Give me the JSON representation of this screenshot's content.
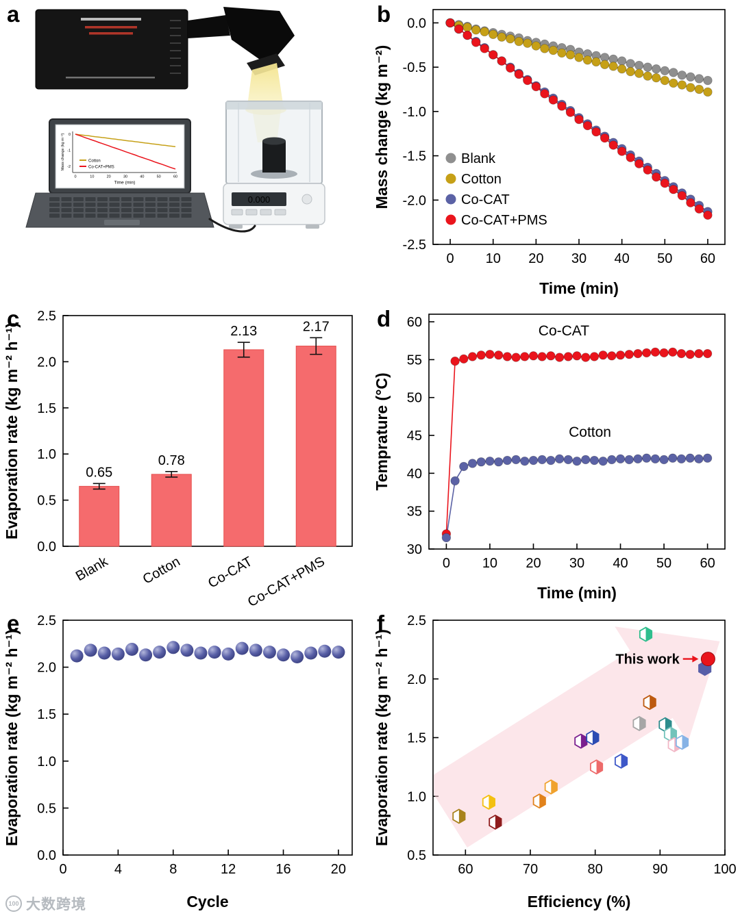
{
  "panel_labels": {
    "a": "a",
    "b": "b",
    "c": "c",
    "d": "d",
    "e": "e",
    "f": "f"
  },
  "watermark": {
    "icon_text": "100",
    "text": "大数跨境"
  },
  "panel_a": {
    "balance_display": "0.000",
    "inset_legend": [
      "Cotton",
      "Co-CAT+PMS"
    ],
    "inset_ylabel": "Mass change (kg m⁻²)",
    "inset_xlabel": "Time (min)"
  },
  "chart_data": [
    {
      "id": "b",
      "type": "line",
      "xlabel": "Time (min)",
      "ylabel": "Mass change (kg m⁻²)",
      "xlim": [
        -4,
        64
      ],
      "ylim": [
        -2.5,
        0.15
      ],
      "xticks": [
        0,
        10,
        20,
        30,
        40,
        50,
        60
      ],
      "yticks": [
        0,
        -0.5,
        -1,
        -1.5,
        -2,
        -2.5
      ],
      "xdec": 0,
      "ydec": 1,
      "x": [
        0,
        2,
        4,
        6,
        8,
        10,
        12,
        14,
        16,
        18,
        20,
        22,
        24,
        26,
        28,
        30,
        32,
        34,
        36,
        38,
        40,
        42,
        44,
        46,
        48,
        50,
        52,
        54,
        56,
        58,
        60
      ],
      "series": [
        {
          "name": "Blank",
          "color": "#8f8f8f",
          "values": [
            0,
            -0.02,
            -0.04,
            -0.07,
            -0.09,
            -0.11,
            -0.13,
            -0.15,
            -0.17,
            -0.2,
            -0.22,
            -0.24,
            -0.26,
            -0.28,
            -0.3,
            -0.33,
            -0.35,
            -0.37,
            -0.39,
            -0.41,
            -0.43,
            -0.46,
            -0.48,
            -0.5,
            -0.52,
            -0.54,
            -0.56,
            -0.59,
            -0.61,
            -0.63,
            -0.65
          ]
        },
        {
          "name": "Cotton",
          "color": "#c6a017",
          "values": [
            0,
            -0.03,
            -0.05,
            -0.08,
            -0.1,
            -0.13,
            -0.16,
            -0.18,
            -0.21,
            -0.23,
            -0.26,
            -0.29,
            -0.31,
            -0.34,
            -0.36,
            -0.39,
            -0.42,
            -0.44,
            -0.47,
            -0.49,
            -0.52,
            -0.55,
            -0.57,
            -0.6,
            -0.62,
            -0.65,
            -0.68,
            -0.7,
            -0.73,
            -0.75,
            -0.78
          ]
        },
        {
          "name": "Co-CAT",
          "color": "#5b62a5",
          "values": [
            0,
            -0.07,
            -0.14,
            -0.21,
            -0.28,
            -0.36,
            -0.43,
            -0.5,
            -0.57,
            -0.64,
            -0.71,
            -0.78,
            -0.85,
            -0.92,
            -0.99,
            -1.07,
            -1.14,
            -1.21,
            -1.28,
            -1.35,
            -1.42,
            -1.49,
            -1.56,
            -1.63,
            -1.7,
            -1.78,
            -1.85,
            -1.92,
            -1.99,
            -2.06,
            -2.13
          ]
        },
        {
          "name": "Co-CAT+PMS",
          "color": "#ea141c",
          "values": [
            0,
            -0.07,
            -0.14,
            -0.22,
            -0.29,
            -0.36,
            -0.43,
            -0.51,
            -0.58,
            -0.65,
            -0.72,
            -0.8,
            -0.87,
            -0.94,
            -1.01,
            -1.09,
            -1.16,
            -1.23,
            -1.3,
            -1.38,
            -1.45,
            -1.52,
            -1.59,
            -1.66,
            -1.74,
            -1.81,
            -1.88,
            -1.95,
            -2.03,
            -2.1,
            -2.17
          ]
        }
      ]
    },
    {
      "id": "c",
      "type": "bar",
      "ylabel": "Evaporation rate (kg m⁻² h⁻¹)",
      "categories": [
        "Blank",
        "Cotton",
        "Co-CAT",
        "Co-CAT+PMS"
      ],
      "values": [
        0.65,
        0.78,
        2.13,
        2.17
      ],
      "errors": [
        0.03,
        0.03,
        0.08,
        0.09
      ],
      "value_labels": [
        "0.65",
        "0.78",
        "2.13",
        "2.17"
      ],
      "ylim": [
        0,
        2.5
      ],
      "yticks": [
        0,
        0.5,
        1,
        1.5,
        2,
        2.5
      ],
      "ydec": 1,
      "bar_color": "#f56b6d",
      "bar_edge": "#e5504f"
    },
    {
      "id": "d",
      "type": "line",
      "xlabel": "Time (min)",
      "ylabel": "Temprature (°C)",
      "xlim": [
        -4,
        64
      ],
      "ylim": [
        30,
        61
      ],
      "xticks": [
        0,
        10,
        20,
        30,
        40,
        50,
        60
      ],
      "yticks": [
        30,
        35,
        40,
        45,
        50,
        55,
        60
      ],
      "xdec": 0,
      "ydec": 0,
      "x": [
        0,
        2,
        4,
        6,
        8,
        10,
        12,
        14,
        16,
        18,
        20,
        22,
        24,
        26,
        28,
        30,
        32,
        34,
        36,
        38,
        40,
        42,
        44,
        46,
        48,
        50,
        52,
        54,
        56,
        58,
        60
      ],
      "series": [
        {
          "name": "Co-CAT",
          "color": "#ea141c",
          "values": [
            32,
            54.8,
            55.1,
            55.4,
            55.6,
            55.7,
            55.6,
            55.4,
            55.3,
            55.4,
            55.5,
            55.4,
            55.5,
            55.3,
            55.4,
            55.5,
            55.3,
            55.4,
            55.6,
            55.5,
            55.6,
            55.7,
            55.8,
            55.9,
            56,
            55.9,
            56,
            55.8,
            55.7,
            55.8,
            55.8
          ]
        },
        {
          "name": "Cotton",
          "color": "#5b62a5",
          "values": [
            31.5,
            39,
            40.9,
            41.3,
            41.5,
            41.6,
            41.5,
            41.7,
            41.8,
            41.6,
            41.7,
            41.8,
            41.7,
            41.9,
            41.8,
            41.6,
            41.8,
            41.7,
            41.6,
            41.8,
            41.9,
            41.8,
            41.9,
            42,
            41.9,
            41.8,
            42,
            41.9,
            42,
            41.9,
            42
          ]
        }
      ],
      "annotations": [
        {
          "text": "Co-CAT",
          "x": 27,
          "y": 58.2
        },
        {
          "text": "Cotton",
          "x": 33,
          "y": 44.8
        }
      ]
    },
    {
      "id": "e",
      "type": "scatter",
      "xlabel": "Cycle",
      "ylabel": "Evaporation rate (kg m⁻² h⁻¹)",
      "xlim": [
        0,
        21
      ],
      "ylim": [
        0,
        2.5
      ],
      "xticks": [
        0,
        4,
        8,
        12,
        16,
        20
      ],
      "yticks": [
        0,
        0.5,
        1,
        1.5,
        2,
        2.5
      ],
      "xdec": 0,
      "ydec": 1,
      "x": [
        1,
        2,
        3,
        4,
        5,
        6,
        7,
        8,
        9,
        10,
        11,
        12,
        13,
        14,
        15,
        16,
        17,
        18,
        19,
        20
      ],
      "values": [
        2.12,
        2.18,
        2.15,
        2.14,
        2.19,
        2.13,
        2.16,
        2.21,
        2.18,
        2.15,
        2.16,
        2.14,
        2.2,
        2.18,
        2.16,
        2.13,
        2.11,
        2.15,
        2.17,
        2.16
      ],
      "marker_color": "#585fa6"
    },
    {
      "id": "f",
      "type": "scatter",
      "xlabel": "Efficiency (%)",
      "ylabel": "Evaporation rate (kg m⁻² h⁻¹)",
      "xlim": [
        55,
        100
      ],
      "ylim": [
        0.5,
        2.5
      ],
      "xticks": [
        60,
        70,
        80,
        90,
        100
      ],
      "yticks": [
        0.5,
        1,
        1.5,
        2,
        2.5
      ],
      "xdec": 0,
      "ydec": 1,
      "arrow": {
        "from": [
          57,
          0.85
        ],
        "to": [
          99.2,
          2.32
        ],
        "color": "#f9cdd6"
      },
      "points": [
        {
          "x": 59,
          "y": 0.83,
          "color": "#a8831c"
        },
        {
          "x": 63.6,
          "y": 0.95,
          "color": "#f3c011"
        },
        {
          "x": 64.6,
          "y": 0.78,
          "color": "#8f1d1d"
        },
        {
          "x": 71.4,
          "y": 0.96,
          "color": "#e1821c"
        },
        {
          "x": 73.2,
          "y": 1.08,
          "color": "#f0a22e"
        },
        {
          "x": 77.8,
          "y": 1.47,
          "color": "#7a1f8e"
        },
        {
          "x": 79.6,
          "y": 1.5,
          "color": "#2c4cb3"
        },
        {
          "x": 80.2,
          "y": 1.25,
          "color": "#ed6a6a"
        },
        {
          "x": 84,
          "y": 1.3,
          "color": "#3e58c8"
        },
        {
          "x": 86.8,
          "y": 1.62,
          "color": "#a6a6a6"
        },
        {
          "x": 88.4,
          "y": 1.8,
          "color": "#bd5a10"
        },
        {
          "x": 87.8,
          "y": 2.38,
          "color": "#2fbe8d"
        },
        {
          "x": 90.8,
          "y": 1.61,
          "color": "#2d8d8d"
        },
        {
          "x": 91.6,
          "y": 1.53,
          "color": "#72c3bb"
        },
        {
          "x": 92.2,
          "y": 1.44,
          "color": "#f2b7c6"
        },
        {
          "x": 93.4,
          "y": 1.46,
          "color": "#86b3e6"
        },
        {
          "x": 96.9,
          "y": 2.09,
          "color": "#575ea8",
          "shape": "hex"
        },
        {
          "x": 97.4,
          "y": 2.17,
          "color": "#ea141c",
          "shape": "circle"
        }
      ],
      "annotation": {
        "text": "This work",
        "color": "#ea141c",
        "x_end": 93.0,
        "y": 2.17,
        "target": [
          97.4,
          2.17
        ]
      }
    }
  ]
}
